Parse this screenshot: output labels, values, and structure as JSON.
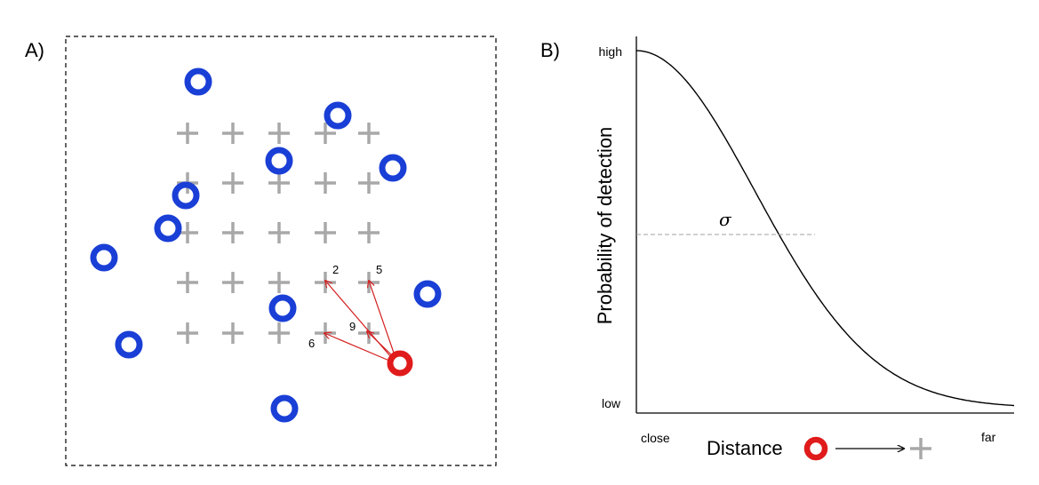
{
  "panel_a": {
    "label": "A)",
    "trap_grid": {
      "columns": 5,
      "rows": 5
    },
    "detected_traps": [
      {
        "count": "2",
        "col": 3,
        "row": 3
      },
      {
        "count": "5",
        "col": 4,
        "row": 3
      },
      {
        "count": "9",
        "col": 4,
        "row": 4
      },
      {
        "count": "6",
        "col": 3,
        "row": 4
      }
    ]
  },
  "panel_b": {
    "label": "B)",
    "y_axis_title": "Probability of detection",
    "y_high_label": "high",
    "y_low_label": "low",
    "x_close_label": "close",
    "x_far_label": "far",
    "x_axis_title": "Distance",
    "sigma_label": "σ"
  },
  "colors": {
    "activity_center": "#1a3fd6",
    "focal_activity_center": "#e01b1b",
    "trap": "#a8a8a8",
    "arrow": "#d42020",
    "curve": "#000000",
    "sigma_line": "#a0a0a0"
  }
}
